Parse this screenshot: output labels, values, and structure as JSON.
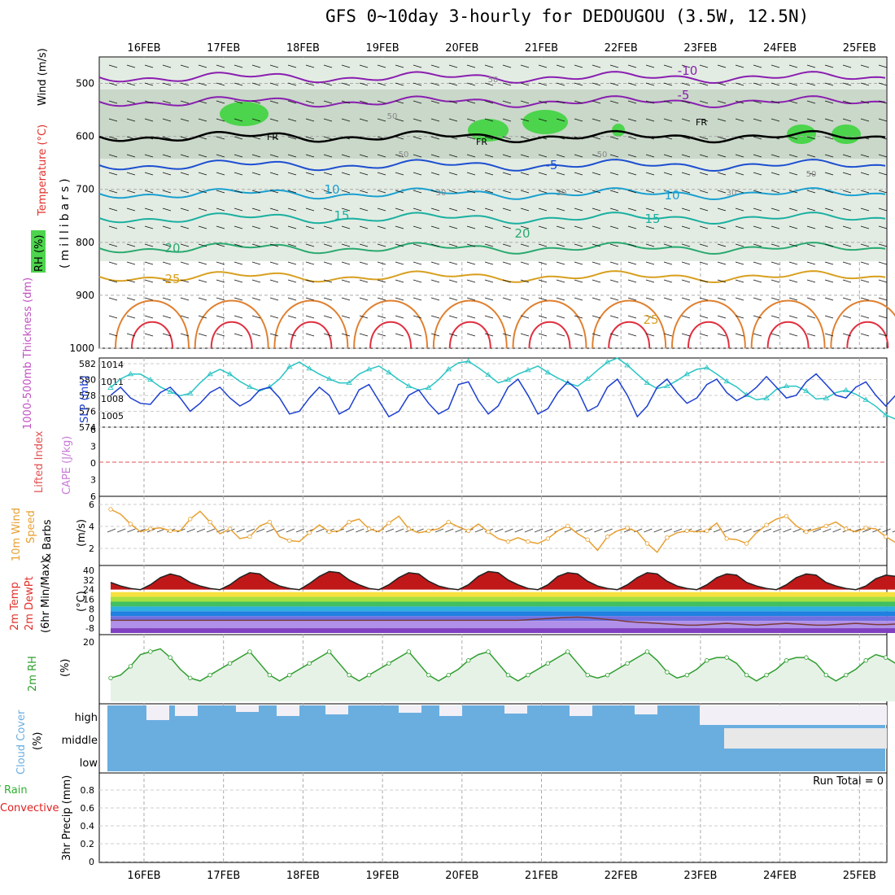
{
  "title": "GFS 0~10day 3-hourly for DEDOUGOU (3.5W, 12.5N)",
  "date_labels": [
    "16FEB",
    "17FEB",
    "18FEB",
    "19FEB",
    "20FEB",
    "21FEB",
    "22FEB",
    "23FEB",
    "24FEB",
    "25FEB"
  ],
  "colors": {
    "rh": "#4cd44c",
    "wind": "#000000",
    "temp": "#e0302a",
    "slp": "#1d3fd0",
    "thick": "#29c4c4",
    "cape": "#c87ad8",
    "lifted": "#e05050",
    "wind10": "#e8a030",
    "rh2m": "#2f9e2f",
    "cloud": "#6aaee0",
    "conv": "#e02020",
    "total": "#30b030"
  },
  "panels": {
    "upper": {
      "labels": {
        "rh": "RH (%)",
        "temperature": "Temperature (°C)",
        "wind": "Wind (m/s)",
        "millibars": "(millibars)"
      },
      "yticks": [
        500,
        600,
        700,
        800,
        900,
        1000
      ],
      "temp_labels": [
        "-10",
        "-5",
        "FR",
        "FR",
        "FR",
        "-5",
        "10",
        "10",
        "15",
        "15",
        "20",
        "20",
        "25",
        "25"
      ],
      "rh_labels": [
        "50",
        "50",
        "50",
        "50",
        "50",
        "30",
        "30",
        "30"
      ]
    },
    "slp": {
      "labels": {
        "thickness": "1000-500mb Thickness (dm)",
        "slp": "SLP (mb)"
      },
      "left_ticks": [
        "582",
        "580",
        "578",
        "576",
        "574"
      ],
      "right_ticks": [
        "1014",
        "1011",
        "1008",
        "1005"
      ]
    },
    "cape": {
      "labels": {
        "lifted": "Lifted Index",
        "cape": "CAPE (J/kg)"
      },
      "ticks": [
        "6",
        "3",
        "0",
        "3",
        "6"
      ]
    },
    "wind10": {
      "labels": {
        "title": "10m Wind",
        "speed": "Speed",
        "barbs": "& Barbs",
        "units": "(m/s)"
      },
      "ticks": [
        "6",
        "4",
        "2"
      ]
    },
    "temp2m": {
      "labels": {
        "temp": "2m Temp",
        "dewpt": "2m DewPt",
        "minmax": "(6hr Min/Max)",
        "units": "(°C)"
      },
      "ticks": [
        "40",
        "32",
        "24",
        "16",
        "8",
        "0",
        "-8"
      ]
    },
    "rh2m": {
      "labels": {
        "title": "2m RH",
        "units": "(%)"
      },
      "ticks": [
        "20"
      ]
    },
    "cloud": {
      "labels": {
        "title": "Cloud Cover",
        "units": "(%)"
      },
      "levels": [
        "high",
        "middle",
        "low"
      ]
    },
    "precip": {
      "labels": {
        "total": "Total / Rain",
        "convective": "Convective",
        "title": "3hr Precip (mm)",
        "run_total": "Run Total = 0"
      },
      "ticks": [
        "0.8",
        "0.6",
        "0.4",
        "0.2",
        "0"
      ]
    }
  },
  "chart_data": [
    {
      "type": "line",
      "title": "1000-500mb Thickness (dm)",
      "x_start": "15FEB 12Z",
      "x_step_hours": 3,
      "ylim": [
        574,
        582
      ],
      "values": [
        578.6,
        579.7,
        580.3,
        580.3,
        579.6,
        578.7,
        578.1,
        577.6,
        577.9,
        579.2,
        580.3,
        580.9,
        580.3,
        579.4,
        578.7,
        578.2,
        578.7,
        579.7,
        581.2,
        581.8,
        581.0,
        580.3,
        579.7,
        579.2,
        579.2,
        580.3,
        580.9,
        581.3,
        580.5,
        579.6,
        578.8,
        578.3,
        578.6,
        579.6,
        580.9,
        581.7,
        581.9,
        581.1,
        580.2,
        579.2,
        579.6,
        580.3,
        580.8,
        581.3,
        580.5,
        579.8,
        579.2,
        578.8,
        579.7,
        580.8,
        581.8,
        582.3,
        581.4,
        580.3,
        579.2,
        578.5,
        578.8,
        579.5,
        580.3,
        580.9,
        581.1,
        580.3,
        579.4,
        578.7,
        577.7,
        577.1,
        577.3,
        578.4,
        578.8,
        578.8,
        578.2,
        577.2,
        577.3,
        578.0,
        578.3,
        577.8,
        577.1,
        576.3,
        575.2,
        574.7,
        575.6,
        576.7,
        577.8,
        578.2,
        577.8,
        577.2,
        576.4,
        575.6,
        575.8,
        576.9,
        577.8,
        578.3,
        577.6,
        576.8,
        575.7,
        575.1
      ]
    },
    {
      "type": "line",
      "title": "SLP (mb)",
      "x_start": "15FEB 12Z",
      "x_step_hours": 3,
      "ylim": [
        1003,
        1015
      ],
      "values": [
        1008.5,
        1010.0,
        1008.0,
        1007.0,
        1006.8,
        1009.0,
        1010.0,
        1008.0,
        1005.5,
        1007.0,
        1009.0,
        1010.0,
        1008.0,
        1006.5,
        1007.5,
        1009.5,
        1010.0,
        1008.0,
        1005.0,
        1005.5,
        1008.0,
        1010.0,
        1008.5,
        1005.0,
        1006.0,
        1009.5,
        1010.5,
        1007.5,
        1004.5,
        1005.5,
        1008.5,
        1009.5,
        1007.0,
        1005.0,
        1006.0,
        1010.5,
        1011.0,
        1007.5,
        1005.0,
        1006.5,
        1010.0,
        1011.5,
        1008.5,
        1005.0,
        1006.0,
        1009.0,
        1011.0,
        1009.5,
        1005.5,
        1006.5,
        1010.0,
        1011.5,
        1008.5,
        1004.5,
        1006.5,
        1010.0,
        1011.5,
        1009.0,
        1007.0,
        1008.0,
        1010.5,
        1011.5,
        1009.0,
        1007.5,
        1008.5,
        1010.0,
        1012.0,
        1010.0,
        1008.0,
        1008.5,
        1011.0,
        1012.5,
        1010.5,
        1008.5,
        1008.0,
        1010.0,
        1011.0,
        1008.5,
        1006.5,
        1008.5,
        1011.5,
        1013.5,
        1010.5,
        1008.5,
        1009.5,
        1011.5,
        1012.0,
        1010.0,
        1007.5,
        1008.5,
        1010.5,
        1011.0,
        1010.0,
        1010.5,
        1011.0,
        1011.0
      ]
    },
    {
      "type": "line",
      "title": "10m Wind Speed (m/s)",
      "x_start": "15FEB 12Z",
      "x_step_hours": 3,
      "ylim": [
        0,
        6.5
      ],
      "values": [
        5.5,
        5.0,
        4.0,
        3.2,
        3.5,
        3.6,
        3.3,
        3.3,
        4.5,
        5.3,
        4.2,
        3.0,
        3.5,
        2.5,
        2.7,
        3.8,
        4.2,
        2.7,
        2.3,
        2.2,
        3.1,
        3.9,
        3.2,
        3.3,
        4.2,
        4.5,
        3.5,
        3.2,
        4.1,
        4.8,
        3.5,
        3.1,
        3.3,
        3.5,
        4.2,
        3.7,
        3.3,
        4.0,
        3.2,
        2.5,
        2.2,
        2.6,
        2.2,
        2.0,
        2.5,
        3.3,
        3.8,
        3.0,
        2.4,
        1.3,
        2.7,
        3.3,
        3.6,
        3.2,
        2.0,
        1.1,
        2.6,
        3.1,
        3.3,
        3.2,
        3.3,
        4.1,
        2.5,
        2.4,
        2.0,
        3.1,
        3.9,
        4.5,
        4.8,
        3.8,
        3.2,
        3.5,
        3.8,
        4.2,
        3.5,
        3.2,
        3.6,
        3.5,
        2.7,
        2.1,
        2.5,
        3.5,
        3.8,
        3.3,
        2.4,
        1.5,
        1.2,
        2.5,
        3.5,
        4.0,
        4.9,
        4.3,
        3.5,
        3.9,
        4.6,
        5.0
      ]
    },
    {
      "type": "area",
      "title": "2m Temp (°C)",
      "x_start": "15FEB 12Z",
      "x_step_hours": 3,
      "ylim": [
        -12,
        42
      ],
      "values": [
        30,
        27,
        25,
        24,
        28,
        34,
        37,
        35,
        30,
        27,
        25,
        24,
        28,
        34,
        38,
        37,
        31,
        27,
        25,
        24,
        29,
        35,
        39,
        38,
        32,
        28,
        25,
        24,
        28,
        34,
        38,
        37,
        31,
        27,
        25,
        24,
        28,
        35,
        39,
        38,
        32,
        28,
        25,
        24,
        28,
        35,
        38,
        37,
        31,
        27,
        25,
        24,
        28,
        34,
        38,
        37,
        31,
        27,
        25,
        24,
        28,
        34,
        37,
        36,
        30,
        27,
        25,
        24,
        28,
        34,
        37,
        36,
        30,
        27,
        25,
        24,
        27,
        33,
        36,
        35,
        29,
        26,
        24,
        24,
        27,
        33,
        36,
        35,
        29,
        26,
        24
      ]
    },
    {
      "type": "line",
      "title": "2m DewPt (°C)",
      "x_start": "15FEB 12Z",
      "x_step_hours": 3,
      "ylim": [
        -12,
        42
      ],
      "values": [
        -1.5,
        -1.5,
        -1.5,
        -1.5,
        -1.5,
        -1.5,
        -1.5,
        -1.5,
        -1.5,
        -1.5,
        -1.5,
        -1.5,
        -1.5,
        -1.5,
        -1.5,
        -1.5,
        -1.5,
        -1.5,
        -1.5,
        -1.5,
        -1.5,
        -1.5,
        -1.5,
        -1.5,
        -1.5,
        -1.5,
        -1.5,
        -1.5,
        -1.5,
        -1.5,
        -1.5,
        -1.5,
        -1.5,
        -1.5,
        -1.5,
        -1.5,
        -1.5,
        -1.5,
        -1.5,
        -1.5,
        -1.5,
        -1.5,
        -1.0,
        -0.5,
        0.0,
        0.5,
        1.0,
        1.2,
        0.8,
        0.0,
        -0.8,
        -1.5,
        -2.5,
        -3.0,
        -3.5,
        -4.0,
        -4.5,
        -5.0,
        -5.5,
        -5.5,
        -5.0,
        -4.5,
        -4.0,
        -4.5,
        -5.0,
        -5.5,
        -5.0,
        -4.5,
        -4.0,
        -4.5,
        -5.0,
        -5.5,
        -5.5,
        -5.0,
        -4.5,
        -4.0,
        -4.5,
        -5.0,
        -5.0,
        -4.5,
        -4.5,
        -5.0,
        -5.0,
        -4.5,
        -4.5,
        -4.5,
        -5.0,
        -5.5,
        -6.0,
        -7.5,
        -8.0
      ]
    },
    {
      "type": "line",
      "title": "2m RH (%)",
      "x_start": "15FEB 12Z",
      "x_step_hours": 3,
      "ylim": [
        0,
        22
      ],
      "values": [
        8,
        9,
        12,
        16,
        17,
        18,
        15,
        11,
        8,
        7,
        9,
        11,
        13,
        15,
        17,
        13,
        9,
        7,
        9,
        11,
        13,
        15,
        17,
        13,
        9,
        7,
        9,
        11,
        13,
        15,
        17,
        13,
        9,
        7,
        9,
        11,
        14,
        16,
        17,
        13,
        9,
        7,
        9,
        11,
        13,
        15,
        17,
        13,
        9,
        8,
        9,
        11,
        13,
        15,
        17,
        14,
        10,
        8,
        9,
        11,
        14,
        15,
        15,
        13,
        9,
        7,
        9,
        11,
        14,
        15,
        15,
        13,
        9,
        7,
        9,
        11,
        14,
        16,
        15,
        13,
        9,
        7,
        9,
        11,
        13,
        15,
        14,
        12,
        9,
        7,
        9,
        11,
        12,
        12,
        11,
        10
      ]
    }
  ]
}
